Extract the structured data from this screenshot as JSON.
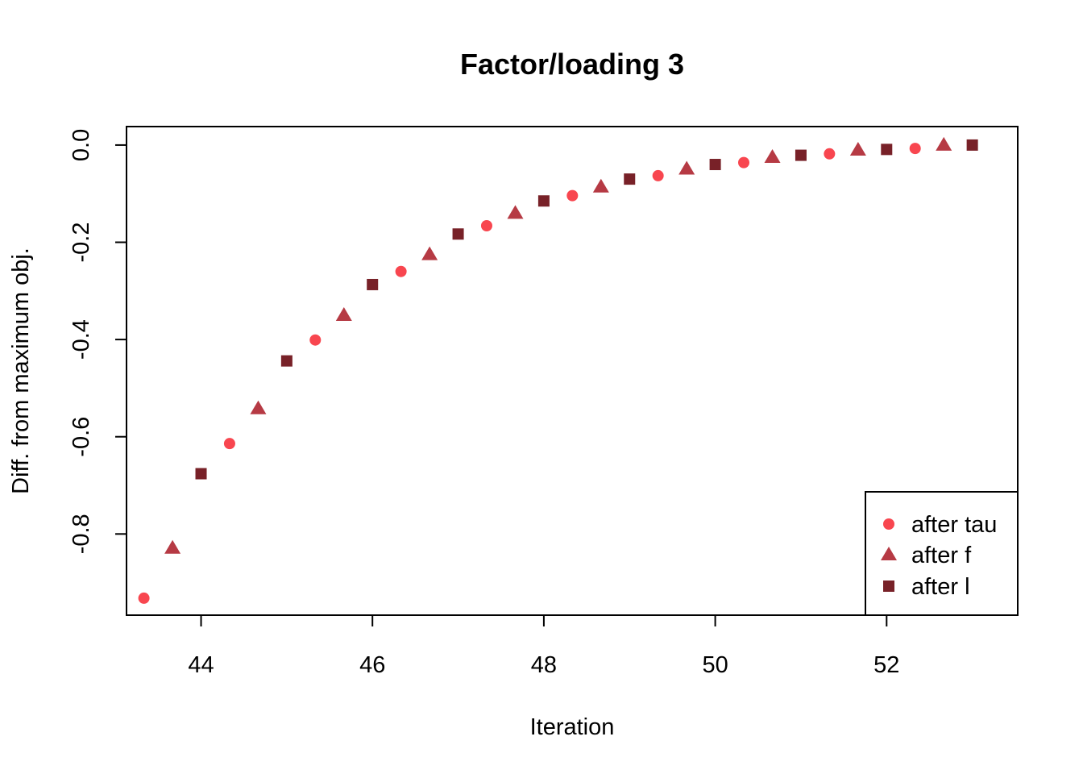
{
  "chart_data": {
    "type": "scatter",
    "title": "Factor/loading 3",
    "xlabel": "Iteration",
    "ylabel": "Diff. from maximum obj.",
    "xlim": [
      43.13,
      53.53
    ],
    "ylim": [
      -0.967,
      0.038
    ],
    "x_ticks": [
      44,
      46,
      48,
      50,
      52
    ],
    "x_tick_labels": [
      "44",
      "46",
      "48",
      "50",
      "52"
    ],
    "y_ticks": [
      0.0,
      -0.2,
      -0.4,
      -0.6,
      -0.8
    ],
    "y_tick_labels": [
      "0.0",
      "-0.2",
      "-0.4",
      "-0.6",
      "-0.8"
    ],
    "grid": false,
    "legend_position": "bottom-right",
    "series": [
      {
        "name": "after tau",
        "marker": "circle",
        "color": "#F8464F",
        "x": [
          43.333,
          44.333,
          45.333,
          46.333,
          47.333,
          48.333,
          49.333,
          50.333,
          51.333,
          52.333
        ],
        "y": [
          -0.932,
          -0.614,
          -0.401,
          -0.26,
          -0.166,
          -0.104,
          -0.063,
          -0.036,
          -0.018,
          -0.007
        ]
      },
      {
        "name": "after f",
        "marker": "triangle",
        "color": "#B63A44",
        "x": [
          43.667,
          44.667,
          45.667,
          46.667,
          47.667,
          48.667,
          49.667,
          50.667,
          51.667,
          52.667
        ],
        "y": [
          -0.829,
          -0.542,
          -0.35,
          -0.225,
          -0.14,
          -0.086,
          -0.049,
          -0.025,
          -0.01,
          0.0
        ]
      },
      {
        "name": "after l",
        "marker": "square",
        "color": "#782128",
        "x": [
          44,
          45,
          46,
          47,
          48,
          49,
          50,
          51,
          52,
          53
        ],
        "y": [
          -0.676,
          -0.444,
          -0.287,
          -0.183,
          -0.115,
          -0.07,
          -0.04,
          -0.021,
          -0.009,
          0.0
        ]
      }
    ]
  }
}
